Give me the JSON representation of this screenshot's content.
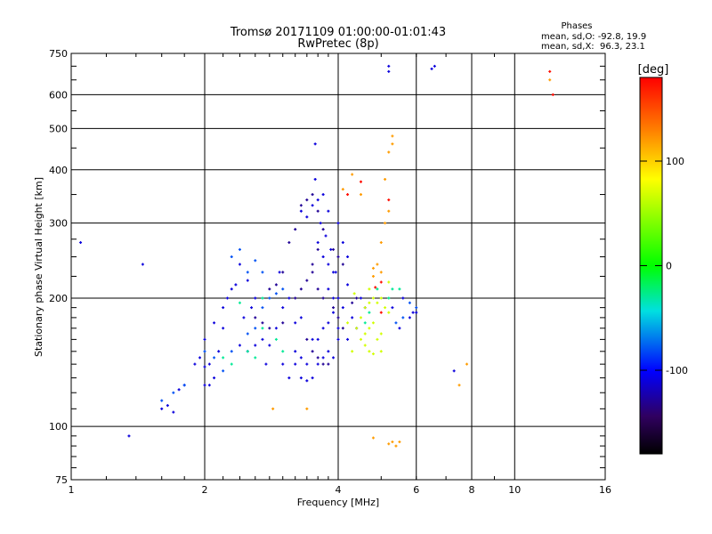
{
  "chart_data": {
    "type": "scatter",
    "title": "Tromsø 20171109 01:00:00-01:01:43",
    "subtitle": "RwPretec (8p)",
    "xlabel": "Frequency [MHz]",
    "ylabel": "Stationary phase Virtual Height [km]",
    "x_scale": "log",
    "y_scale": "log",
    "xlim": [
      1,
      16
    ],
    "ylim": [
      75,
      750
    ],
    "x_ticks": [
      1,
      2,
      4,
      6,
      8,
      10,
      16
    ],
    "y_ticks": [
      75,
      100,
      200,
      300,
      400,
      500,
      600,
      750
    ],
    "grid": true,
    "stats": {
      "header": "Phases",
      "line_o": "mean, sd,O: -92.8, 19.9",
      "line_x": "mean, sd,X:  96.3, 23.1"
    },
    "colorbar": {
      "label": "[deg]",
      "range": [
        -180,
        180
      ],
      "ticks": [
        100,
        0,
        -100
      ],
      "colors": [
        "#ff0000",
        "#ff8000",
        "#ffff00",
        "#00ff00",
        "#00e0e0",
        "#0000ff",
        "#300060",
        "#000000"
      ]
    },
    "series": [
      {
        "phase_deg": -110,
        "points": [
          [
            1.05,
            270
          ],
          [
            1.35,
            95
          ],
          [
            1.45,
            240
          ],
          [
            1.6,
            110
          ],
          [
            1.65,
            112
          ],
          [
            1.7,
            108
          ],
          [
            1.75,
            122
          ],
          [
            1.8,
            125
          ],
          [
            1.9,
            140
          ],
          [
            1.95,
            145
          ],
          [
            2.0,
            138
          ],
          [
            2.05,
            140
          ],
          [
            2.0,
            125
          ],
          [
            2.05,
            125
          ],
          [
            2.1,
            130
          ],
          [
            2.15,
            150
          ],
          [
            2.2,
            170
          ],
          [
            2.25,
            200
          ],
          [
            2.3,
            210
          ],
          [
            2.35,
            215
          ],
          [
            2.4,
            240
          ],
          [
            2.5,
            220
          ],
          [
            2.45,
            180
          ],
          [
            2.55,
            190
          ],
          [
            2.6,
            200
          ],
          [
            2.4,
            155
          ],
          [
            2.5,
            150
          ],
          [
            2.6,
            155
          ],
          [
            2.7,
            160
          ],
          [
            2.8,
            155
          ],
          [
            2.9,
            170
          ],
          [
            2.75,
            140
          ],
          [
            2.95,
            230
          ],
          [
            3.0,
            190
          ],
          [
            3.1,
            200
          ],
          [
            3.2,
            175
          ],
          [
            3.3,
            180
          ],
          [
            3.2,
            150
          ],
          [
            3.3,
            145
          ],
          [
            3.1,
            130
          ],
          [
            3.3,
            130
          ],
          [
            3.4,
            128
          ],
          [
            3.5,
            130
          ],
          [
            3.6,
            140
          ],
          [
            3.7,
            145
          ],
          [
            3.8,
            150
          ],
          [
            3.9,
            145
          ],
          [
            4.0,
            160
          ],
          [
            4.2,
            160
          ],
          [
            3.55,
            380
          ],
          [
            3.6,
            340
          ],
          [
            3.7,
            350
          ],
          [
            3.8,
            320
          ],
          [
            3.65,
            300
          ],
          [
            3.75,
            280
          ],
          [
            3.85,
            260
          ],
          [
            3.8,
            240
          ],
          [
            3.9,
            230
          ],
          [
            3.55,
            460
          ],
          [
            3.3,
            320
          ],
          [
            3.4,
            310
          ],
          [
            3.5,
            330
          ],
          [
            3.6,
            270
          ],
          [
            3.7,
            250
          ],
          [
            3.8,
            210
          ],
          [
            3.9,
            200
          ],
          [
            4.0,
            200
          ],
          [
            4.1,
            190
          ],
          [
            4.3,
            180
          ],
          [
            4.4,
            170
          ],
          [
            4.2,
            250
          ],
          [
            4.1,
            270
          ],
          [
            4.0,
            300
          ],
          [
            3.95,
            230
          ],
          [
            4.2,
            215
          ],
          [
            4.5,
            200
          ],
          [
            4.6,
            190
          ],
          [
            5.3,
            190
          ],
          [
            5.6,
            200
          ],
          [
            5.9,
            185
          ],
          [
            6.0,
            185
          ],
          [
            5.8,
            180
          ],
          [
            5.5,
            170
          ],
          [
            5.2,
            700
          ],
          [
            5.2,
            680
          ],
          [
            6.6,
            700
          ],
          [
            6.5,
            690
          ],
          [
            7.3,
            135
          ],
          [
            2.0,
            160
          ],
          [
            2.1,
            175
          ],
          [
            2.2,
            190
          ],
          [
            3.0,
            140
          ],
          [
            3.2,
            140
          ],
          [
            3.4,
            140
          ],
          [
            3.5,
            160
          ],
          [
            3.6,
            160
          ],
          [
            3.7,
            170
          ],
          [
            3.8,
            175
          ],
          [
            3.9,
            185
          ],
          [
            4.0,
            170
          ]
        ]
      },
      {
        "phase_deg": -130,
        "points": [
          [
            3.2,
            200
          ],
          [
            3.3,
            210
          ],
          [
            3.4,
            220
          ],
          [
            3.5,
            230
          ],
          [
            3.6,
            210
          ],
          [
            3.7,
            200
          ],
          [
            3.4,
            160
          ],
          [
            3.5,
            150
          ],
          [
            3.6,
            145
          ],
          [
            3.7,
            140
          ],
          [
            3.8,
            140
          ],
          [
            3.5,
            240
          ],
          [
            3.6,
            260
          ],
          [
            3.7,
            290
          ],
          [
            3.6,
            320
          ],
          [
            3.5,
            350
          ],
          [
            3.4,
            340
          ],
          [
            3.3,
            330
          ],
          [
            3.2,
            290
          ],
          [
            3.1,
            270
          ],
          [
            3.0,
            230
          ],
          [
            2.8,
            210
          ],
          [
            2.9,
            215
          ],
          [
            3.0,
            175
          ],
          [
            2.6,
            180
          ],
          [
            2.7,
            175
          ],
          [
            2.8,
            170
          ],
          [
            3.9,
            190
          ],
          [
            4.0,
            180
          ],
          [
            4.1,
            170
          ],
          [
            4.3,
            195
          ],
          [
            4.4,
            200
          ],
          [
            3.9,
            260
          ],
          [
            4.0,
            250
          ],
          [
            4.1,
            240
          ]
        ]
      },
      {
        "phase_deg": -80,
        "points": [
          [
            2.0,
            150
          ],
          [
            2.1,
            145
          ],
          [
            2.2,
            135
          ],
          [
            2.3,
            150
          ],
          [
            2.5,
            165
          ],
          [
            2.6,
            170
          ],
          [
            2.7,
            190
          ],
          [
            2.8,
            200
          ],
          [
            2.9,
            205
          ],
          [
            3.0,
            210
          ],
          [
            2.3,
            250
          ],
          [
            2.4,
            260
          ],
          [
            2.5,
            230
          ],
          [
            2.6,
            245
          ],
          [
            2.7,
            230
          ],
          [
            1.6,
            115
          ],
          [
            1.7,
            120
          ],
          [
            1.8,
            125
          ],
          [
            5.8,
            195
          ],
          [
            6.0,
            190
          ],
          [
            5.6,
            180
          ],
          [
            5.4,
            175
          ]
        ]
      },
      {
        "phase_deg": -30,
        "points": [
          [
            2.2,
            145
          ],
          [
            2.3,
            140
          ],
          [
            2.5,
            150
          ],
          [
            2.6,
            145
          ],
          [
            2.7,
            170
          ],
          [
            2.9,
            160
          ],
          [
            3.0,
            150
          ],
          [
            2.4,
            195
          ],
          [
            4.6,
            175
          ],
          [
            4.7,
            185
          ],
          [
            5.2,
            200
          ],
          [
            5.3,
            210
          ],
          [
            4.9,
            210
          ],
          [
            5.5,
            210
          ],
          [
            2.7,
            200
          ]
        ]
      },
      {
        "phase_deg": 70,
        "points": [
          [
            4.5,
            180
          ],
          [
            4.6,
            190
          ],
          [
            4.7,
            195
          ],
          [
            4.8,
            200
          ],
          [
            4.9,
            195
          ],
          [
            5.0,
            200
          ],
          [
            5.1,
            190
          ],
          [
            5.2,
            185
          ],
          [
            4.6,
            165
          ],
          [
            4.7,
            170
          ],
          [
            4.8,
            175
          ],
          [
            4.9,
            160
          ],
          [
            5.0,
            165
          ],
          [
            4.5,
            160
          ],
          [
            4.6,
            155
          ],
          [
            4.7,
            150
          ],
          [
            4.8,
            148
          ],
          [
            5.0,
            150
          ],
          [
            4.4,
            170
          ],
          [
            4.3,
            150
          ],
          [
            4.35,
            205
          ],
          [
            4.2,
            175
          ],
          [
            4.7,
            210
          ],
          [
            5.2,
            218
          ]
        ]
      },
      {
        "phase_deg": 120,
        "points": [
          [
            4.8,
            235
          ],
          [
            4.9,
            240
          ],
          [
            5.0,
            230
          ],
          [
            4.8,
            225
          ],
          [
            5.0,
            270
          ],
          [
            5.1,
            300
          ],
          [
            5.1,
            380
          ],
          [
            5.2,
            320
          ],
          [
            5.3,
            460
          ],
          [
            5.3,
            480
          ],
          [
            4.8,
            94
          ],
          [
            5.3,
            92
          ],
          [
            5.4,
            90
          ],
          [
            5.5,
            92
          ],
          [
            5.2,
            91
          ],
          [
            2.85,
            110
          ],
          [
            3.4,
            110
          ],
          [
            4.1,
            360
          ],
          [
            4.5,
            350
          ],
          [
            7.5,
            125
          ],
          [
            7.8,
            140
          ],
          [
            12.0,
            650
          ],
          [
            4.3,
            390
          ],
          [
            5.2,
            440
          ]
        ]
      },
      {
        "phase_deg": 175,
        "points": [
          [
            4.85,
            212
          ],
          [
            5.0,
            218
          ],
          [
            5.2,
            340
          ],
          [
            12.0,
            680
          ],
          [
            12.2,
            600
          ],
          [
            4.2,
            350
          ],
          [
            4.5,
            375
          ],
          [
            5.0,
            185
          ]
        ]
      }
    ]
  }
}
